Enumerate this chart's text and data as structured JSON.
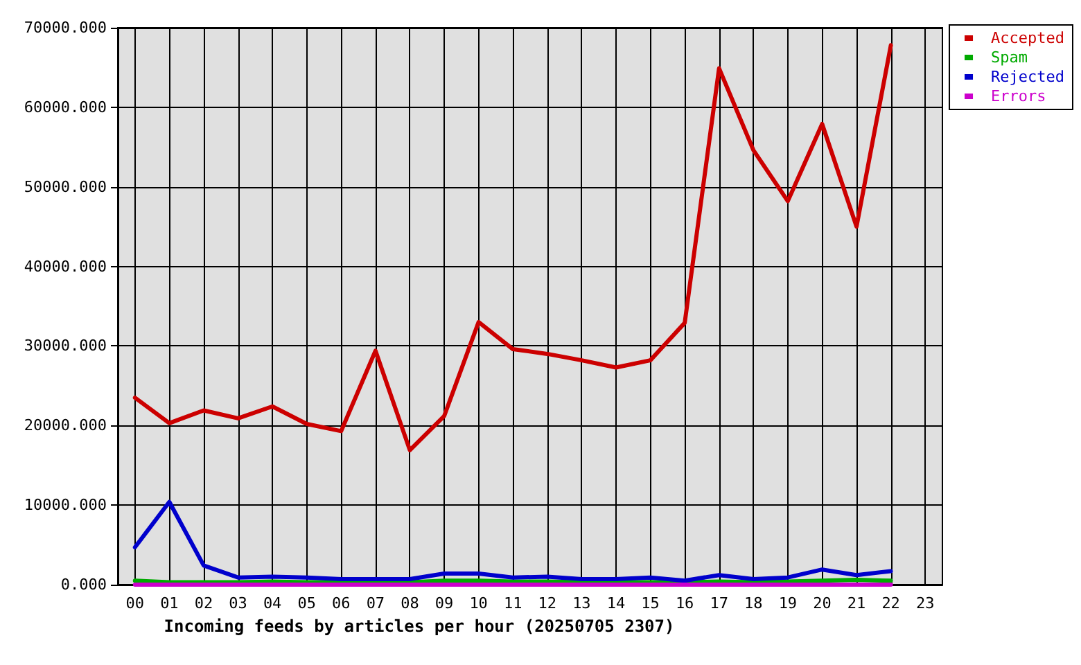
{
  "chart_data": {
    "type": "line",
    "xlabel": "Incoming feeds by articles per hour (20250705 2307)",
    "categories": [
      "00",
      "01",
      "02",
      "03",
      "04",
      "05",
      "06",
      "07",
      "08",
      "09",
      "10",
      "11",
      "12",
      "13",
      "14",
      "15",
      "16",
      "17",
      "18",
      "19",
      "20",
      "21",
      "22",
      "23"
    ],
    "series": [
      {
        "name": "Accepted",
        "color": "#cc0000",
        "values": [
          23500,
          20300,
          21900,
          20900,
          22400,
          20200,
          19300,
          29400,
          16900,
          21200,
          33000,
          29600,
          29000,
          28200,
          27300,
          28200,
          32900,
          64900,
          54600,
          48200,
          57900,
          45000,
          67800,
          null
        ]
      },
      {
        "name": "Spam",
        "color": "#00aa00",
        "values": [
          500,
          300,
          300,
          300,
          400,
          300,
          300,
          300,
          300,
          500,
          500,
          400,
          400,
          300,
          300,
          300,
          300,
          400,
          300,
          400,
          500,
          600,
          500,
          null
        ]
      },
      {
        "name": "Rejected",
        "color": "#0000cc",
        "values": [
          4700,
          10400,
          2400,
          900,
          1000,
          900,
          700,
          700,
          700,
          1400,
          1400,
          900,
          1000,
          700,
          700,
          900,
          500,
          1200,
          700,
          900,
          1900,
          1200,
          1700,
          null
        ]
      },
      {
        "name": "Errors",
        "color": "#cc00cc",
        "values": [
          0,
          0,
          0,
          0,
          0,
          0,
          0,
          0,
          0,
          0,
          0,
          0,
          0,
          0,
          0,
          0,
          0,
          0,
          0,
          0,
          0,
          0,
          0,
          null
        ]
      }
    ],
    "ylim": [
      0,
      70000
    ],
    "yticks": [
      {
        "value": 0,
        "label": "0.000"
      },
      {
        "value": 10000,
        "label": "10000.000"
      },
      {
        "value": 20000,
        "label": "20000.000"
      },
      {
        "value": 30000,
        "label": "30000.000"
      },
      {
        "value": 40000,
        "label": "40000.000"
      },
      {
        "value": 50000,
        "label": "50000.000"
      },
      {
        "value": 60000,
        "label": "60000.000"
      },
      {
        "value": 70000,
        "label": "70000.000"
      }
    ],
    "grid": true,
    "legend": "top right",
    "marker": "none",
    "line_style": "solid"
  }
}
